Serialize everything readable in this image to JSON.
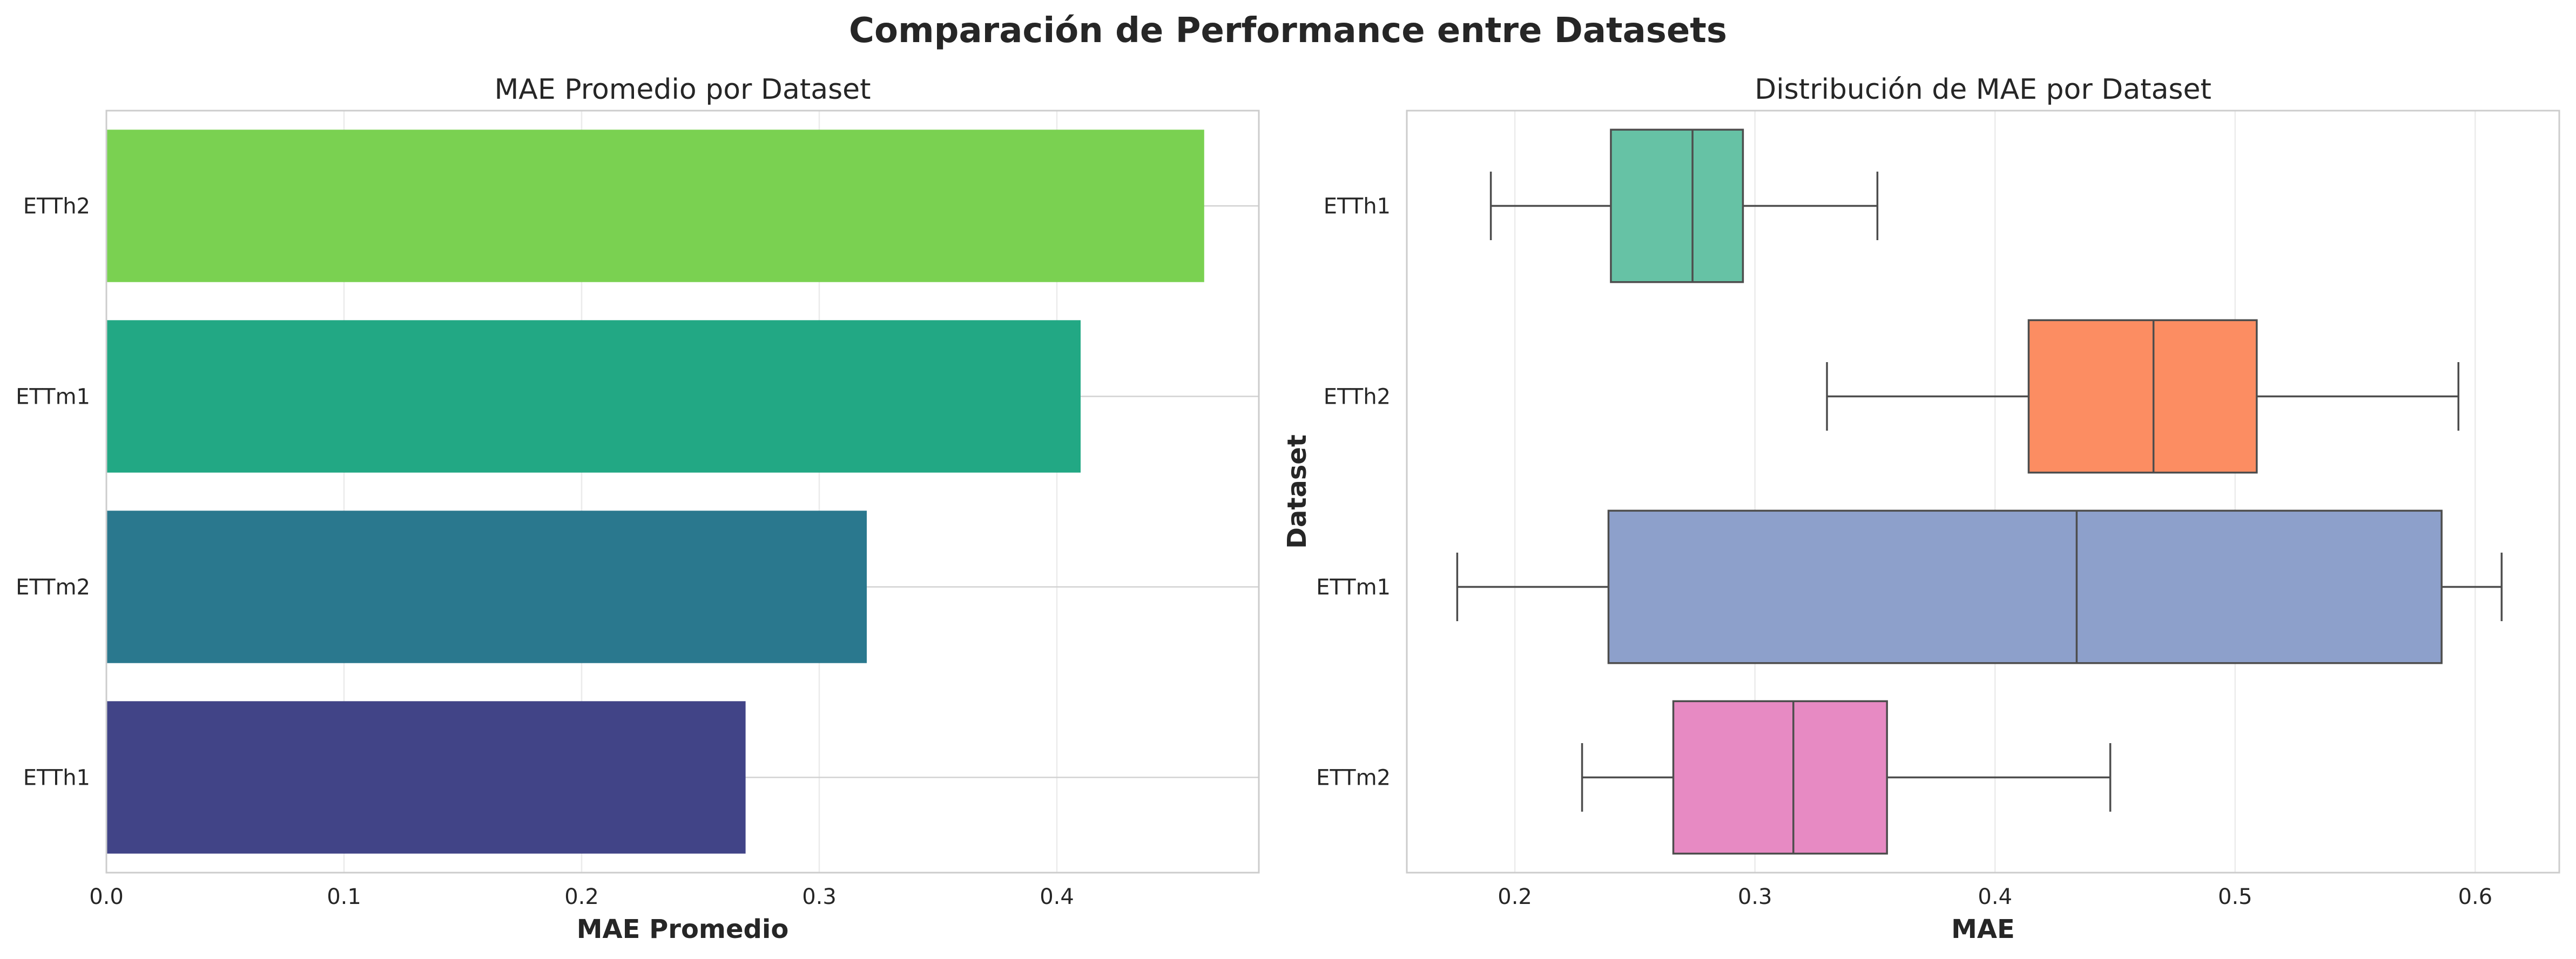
{
  "figure_title": "Comparación de Performance entre Datasets",
  "chart_data": [
    {
      "type": "bar",
      "orientation": "horizontal",
      "title": "MAE Promedio por Dataset",
      "xlabel": "MAE Promedio",
      "ylabel": "",
      "categories": [
        "ETTh2",
        "ETTm1",
        "ETTm2",
        "ETTh1"
      ],
      "values": [
        0.462,
        0.41,
        0.32,
        0.269
      ],
      "colors": [
        "#7ad151",
        "#22a884",
        "#2a788e",
        "#414487"
      ],
      "xlim": [
        0.0,
        0.485
      ],
      "xticks": [
        "0.0",
        "0.1",
        "0.2",
        "0.3",
        "0.4"
      ],
      "grid": true
    },
    {
      "type": "box",
      "orientation": "horizontal",
      "title": "Distribución de MAE por Dataset",
      "xlabel": "MAE",
      "ylabel": "Dataset",
      "categories": [
        "ETTh1",
        "ETTh2",
        "ETTm1",
        "ETTm2"
      ],
      "boxes": [
        {
          "name": "ETTh1",
          "whislo": 0.19,
          "q1": 0.24,
          "median": 0.274,
          "q3": 0.295,
          "whishi": 0.351,
          "color": "#66c2a5"
        },
        {
          "name": "ETTh2",
          "whislo": 0.33,
          "q1": 0.414,
          "median": 0.466,
          "q3": 0.509,
          "whishi": 0.593,
          "color": "#fc8d62"
        },
        {
          "name": "ETTm1",
          "whislo": 0.176,
          "q1": 0.239,
          "median": 0.434,
          "q3": 0.586,
          "whishi": 0.611,
          "color": "#8da0cb"
        },
        {
          "name": "ETTm2",
          "whislo": 0.228,
          "q1": 0.266,
          "median": 0.316,
          "q3": 0.355,
          "whishi": 0.448,
          "color": "#e78ac3"
        }
      ],
      "xlim": [
        0.155,
        0.635
      ],
      "xticks": [
        "0.2",
        "0.3",
        "0.4",
        "0.5",
        "0.6"
      ],
      "grid": true
    }
  ]
}
